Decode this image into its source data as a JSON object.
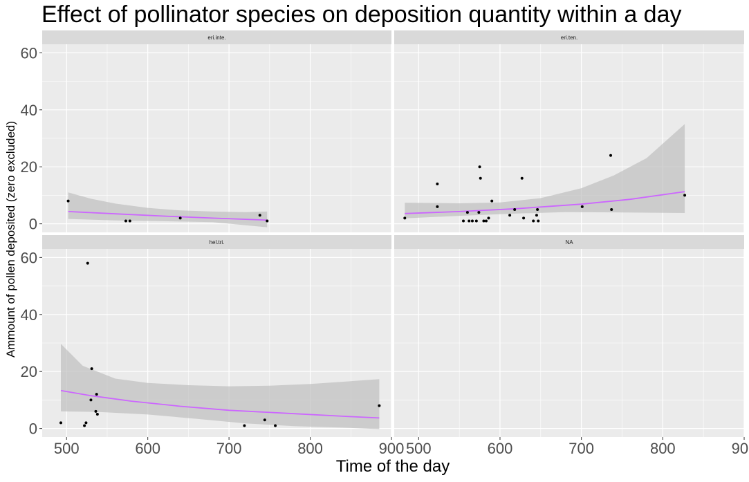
{
  "chart_data": {
    "type": "scatter",
    "title": "Effect of pollinator species on deposition quantity within a day",
    "xlabel": "Time of the day",
    "ylabel": "Ammount of pollen deposited (zero excluded)",
    "xlim": [
      470,
      900
    ],
    "ylim": [
      -3,
      63
    ],
    "x_ticks": [
      500,
      600,
      700,
      800,
      900
    ],
    "y_ticks": [
      0,
      20,
      40,
      60
    ],
    "grid": true,
    "legend": "none",
    "colors": {
      "panel_bg": "#ebebeb",
      "strip_bg": "#d9d9d9",
      "grid": "#ffffff",
      "points": "#000000",
      "fit_line": "#cc66ff",
      "ribbon": "#bfbfbf"
    },
    "panels": [
      {
        "label": "eri.inte.",
        "points": [
          {
            "x": 502,
            "y": 8
          },
          {
            "x": 573,
            "y": 1
          },
          {
            "x": 578,
            "y": 1
          },
          {
            "x": 640,
            "y": 2
          },
          {
            "x": 738,
            "y": 3
          },
          {
            "x": 747,
            "y": 1
          }
        ],
        "fit": [
          {
            "x": 502,
            "y": 4.3
          },
          {
            "x": 560,
            "y": 3.5
          },
          {
            "x": 620,
            "y": 2.7
          },
          {
            "x": 680,
            "y": 2.0
          },
          {
            "x": 747,
            "y": 1.3
          }
        ],
        "ribbon_upper": [
          {
            "x": 502,
            "y": 11
          },
          {
            "x": 530,
            "y": 8.8
          },
          {
            "x": 560,
            "y": 7.1
          },
          {
            "x": 600,
            "y": 5.6
          },
          {
            "x": 640,
            "y": 4.7
          },
          {
            "x": 680,
            "y": 4.3
          },
          {
            "x": 720,
            "y": 4.1
          },
          {
            "x": 747,
            "y": 4.3
          }
        ],
        "ribbon_lower": [
          {
            "x": 502,
            "y": 1.7
          },
          {
            "x": 560,
            "y": 1.2
          },
          {
            "x": 620,
            "y": 0.9
          },
          {
            "x": 680,
            "y": 0.6
          },
          {
            "x": 747,
            "y": -1.2
          }
        ]
      },
      {
        "label": "eri.ten.",
        "points": [
          {
            "x": 483,
            "y": 2
          },
          {
            "x": 523,
            "y": 14
          },
          {
            "x": 523,
            "y": 6
          },
          {
            "x": 555,
            "y": 1
          },
          {
            "x": 560,
            "y": 4
          },
          {
            "x": 562,
            "y": 1
          },
          {
            "x": 566,
            "y": 1
          },
          {
            "x": 571,
            "y": 1
          },
          {
            "x": 574,
            "y": 4
          },
          {
            "x": 575,
            "y": 20
          },
          {
            "x": 576,
            "y": 16
          },
          {
            "x": 580,
            "y": 1
          },
          {
            "x": 583,
            "y": 1
          },
          {
            "x": 586,
            "y": 2
          },
          {
            "x": 590,
            "y": 8
          },
          {
            "x": 612,
            "y": 3
          },
          {
            "x": 618,
            "y": 5
          },
          {
            "x": 627,
            "y": 16
          },
          {
            "x": 629,
            "y": 2
          },
          {
            "x": 641,
            "y": 1
          },
          {
            "x": 645,
            "y": 3
          },
          {
            "x": 646,
            "y": 5
          },
          {
            "x": 647,
            "y": 1
          },
          {
            "x": 701,
            "y": 6
          },
          {
            "x": 736,
            "y": 24
          },
          {
            "x": 737,
            "y": 5
          },
          {
            "x": 827,
            "y": 10
          }
        ],
        "fit": [
          {
            "x": 483,
            "y": 3.6
          },
          {
            "x": 550,
            "y": 4.3
          },
          {
            "x": 620,
            "y": 5.3
          },
          {
            "x": 700,
            "y": 6.9
          },
          {
            "x": 760,
            "y": 8.6
          },
          {
            "x": 827,
            "y": 11.3
          }
        ],
        "ribbon_upper": [
          {
            "x": 483,
            "y": 7.4
          },
          {
            "x": 550,
            "y": 7.2
          },
          {
            "x": 600,
            "y": 7.5
          },
          {
            "x": 650,
            "y": 9
          },
          {
            "x": 700,
            "y": 12.5
          },
          {
            "x": 740,
            "y": 17
          },
          {
            "x": 780,
            "y": 23
          },
          {
            "x": 827,
            "y": 35
          }
        ],
        "ribbon_lower": [
          {
            "x": 483,
            "y": 1.9
          },
          {
            "x": 550,
            "y": 2.8
          },
          {
            "x": 620,
            "y": 3.6
          },
          {
            "x": 680,
            "y": 4.1
          },
          {
            "x": 750,
            "y": 4.0
          },
          {
            "x": 827,
            "y": 3.8
          }
        ]
      },
      {
        "label": "hel.tri.",
        "points": [
          {
            "x": 493,
            "y": 2
          },
          {
            "x": 522,
            "y": 1
          },
          {
            "x": 524,
            "y": 2
          },
          {
            "x": 526,
            "y": 58
          },
          {
            "x": 530,
            "y": 10
          },
          {
            "x": 531,
            "y": 21
          },
          {
            "x": 536,
            "y": 6
          },
          {
            "x": 537,
            "y": 12
          },
          {
            "x": 538,
            "y": 5
          },
          {
            "x": 719,
            "y": 1
          },
          {
            "x": 744,
            "y": 3
          },
          {
            "x": 757,
            "y": 1
          },
          {
            "x": 885,
            "y": 8
          }
        ],
        "fit": [
          {
            "x": 493,
            "y": 13.3
          },
          {
            "x": 530,
            "y": 11.5
          },
          {
            "x": 580,
            "y": 9.6
          },
          {
            "x": 640,
            "y": 7.8
          },
          {
            "x": 700,
            "y": 6.4
          },
          {
            "x": 780,
            "y": 5.2
          },
          {
            "x": 840,
            "y": 4.3
          },
          {
            "x": 885,
            "y": 3.7
          }
        ],
        "ribbon_upper": [
          {
            "x": 493,
            "y": 29.7
          },
          {
            "x": 520,
            "y": 22
          },
          {
            "x": 560,
            "y": 17.5
          },
          {
            "x": 600,
            "y": 16
          },
          {
            "x": 650,
            "y": 15.2
          },
          {
            "x": 700,
            "y": 14.8
          },
          {
            "x": 750,
            "y": 15
          },
          {
            "x": 800,
            "y": 15.6
          },
          {
            "x": 850,
            "y": 16.6
          },
          {
            "x": 885,
            "y": 17.3
          }
        ],
        "ribbon_lower": [
          {
            "x": 493,
            "y": 6
          },
          {
            "x": 540,
            "y": 5.8
          },
          {
            "x": 600,
            "y": 4.9
          },
          {
            "x": 660,
            "y": 3.4
          },
          {
            "x": 720,
            "y": 1.8
          },
          {
            "x": 780,
            "y": 0.8
          },
          {
            "x": 840,
            "y": 0.3
          },
          {
            "x": 885,
            "y": -0.2
          }
        ]
      },
      {
        "label": "NA",
        "points": [],
        "fit": [],
        "ribbon_upper": [],
        "ribbon_lower": []
      }
    ]
  }
}
